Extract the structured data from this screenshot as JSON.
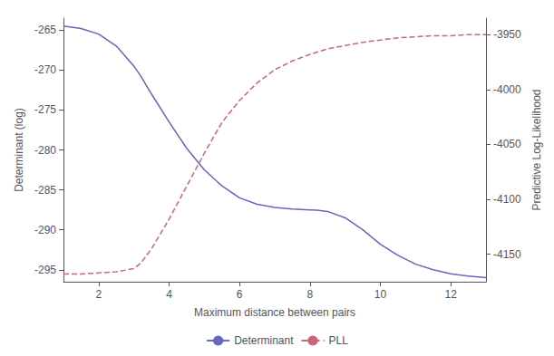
{
  "chart_data": {
    "type": "line",
    "xlabel": "Maximum distance between pairs",
    "ylabel": "Determinant (log)",
    "y2label": "Predictive Log-Likelihood",
    "x": [
      1,
      1.5,
      2,
      2.5,
      3,
      3.2,
      3.5,
      4,
      4.5,
      5,
      5.5,
      6,
      6.5,
      7,
      7.5,
      8,
      8.2,
      8.5,
      9,
      9.5,
      10,
      10.5,
      11,
      11.5,
      12,
      12.5,
      13
    ],
    "series": [
      {
        "name": "Determinant",
        "color": "#6666bb",
        "line_style": "solid",
        "values": [
          -264.5,
          -264.8,
          -265.5,
          -267.0,
          -269.5,
          -270.8,
          -273.0,
          -276.5,
          -279.8,
          -282.5,
          -284.5,
          -286.0,
          -286.8,
          -287.2,
          -287.4,
          -287.5,
          -287.55,
          -287.7,
          -288.5,
          -290.0,
          -291.8,
          -293.2,
          -294.3,
          -295.0,
          -295.5,
          -295.8,
          -296.0
        ]
      },
      {
        "name": "PLL",
        "color": "#cc6677",
        "line_style": "dashed",
        "axis": "y2",
        "values": [
          -4168,
          -4168,
          -4167,
          -4166,
          -4163,
          -4158,
          -4145,
          -4118,
          -4088,
          -4058,
          -4030,
          -4010,
          -3994,
          -3982,
          -3974,
          -3968,
          -3966,
          -3963,
          -3960,
          -3957,
          -3955,
          -3953,
          -3952,
          -3951,
          -3951,
          -3950,
          -3950
        ]
      }
    ],
    "xlim": [
      1,
      13
    ],
    "xticks": [
      2,
      4,
      6,
      8,
      10,
      12
    ],
    "ylim": [
      -296.5,
      -263.5
    ],
    "yticks": [
      -265,
      -270,
      -275,
      -280,
      -285,
      -290,
      -295
    ],
    "y2lim": [
      -4175,
      -3935
    ],
    "y2ticks": [
      -3950,
      -4000,
      -4050,
      -4100,
      -4150
    ],
    "grid": false,
    "legend": "bottom"
  }
}
